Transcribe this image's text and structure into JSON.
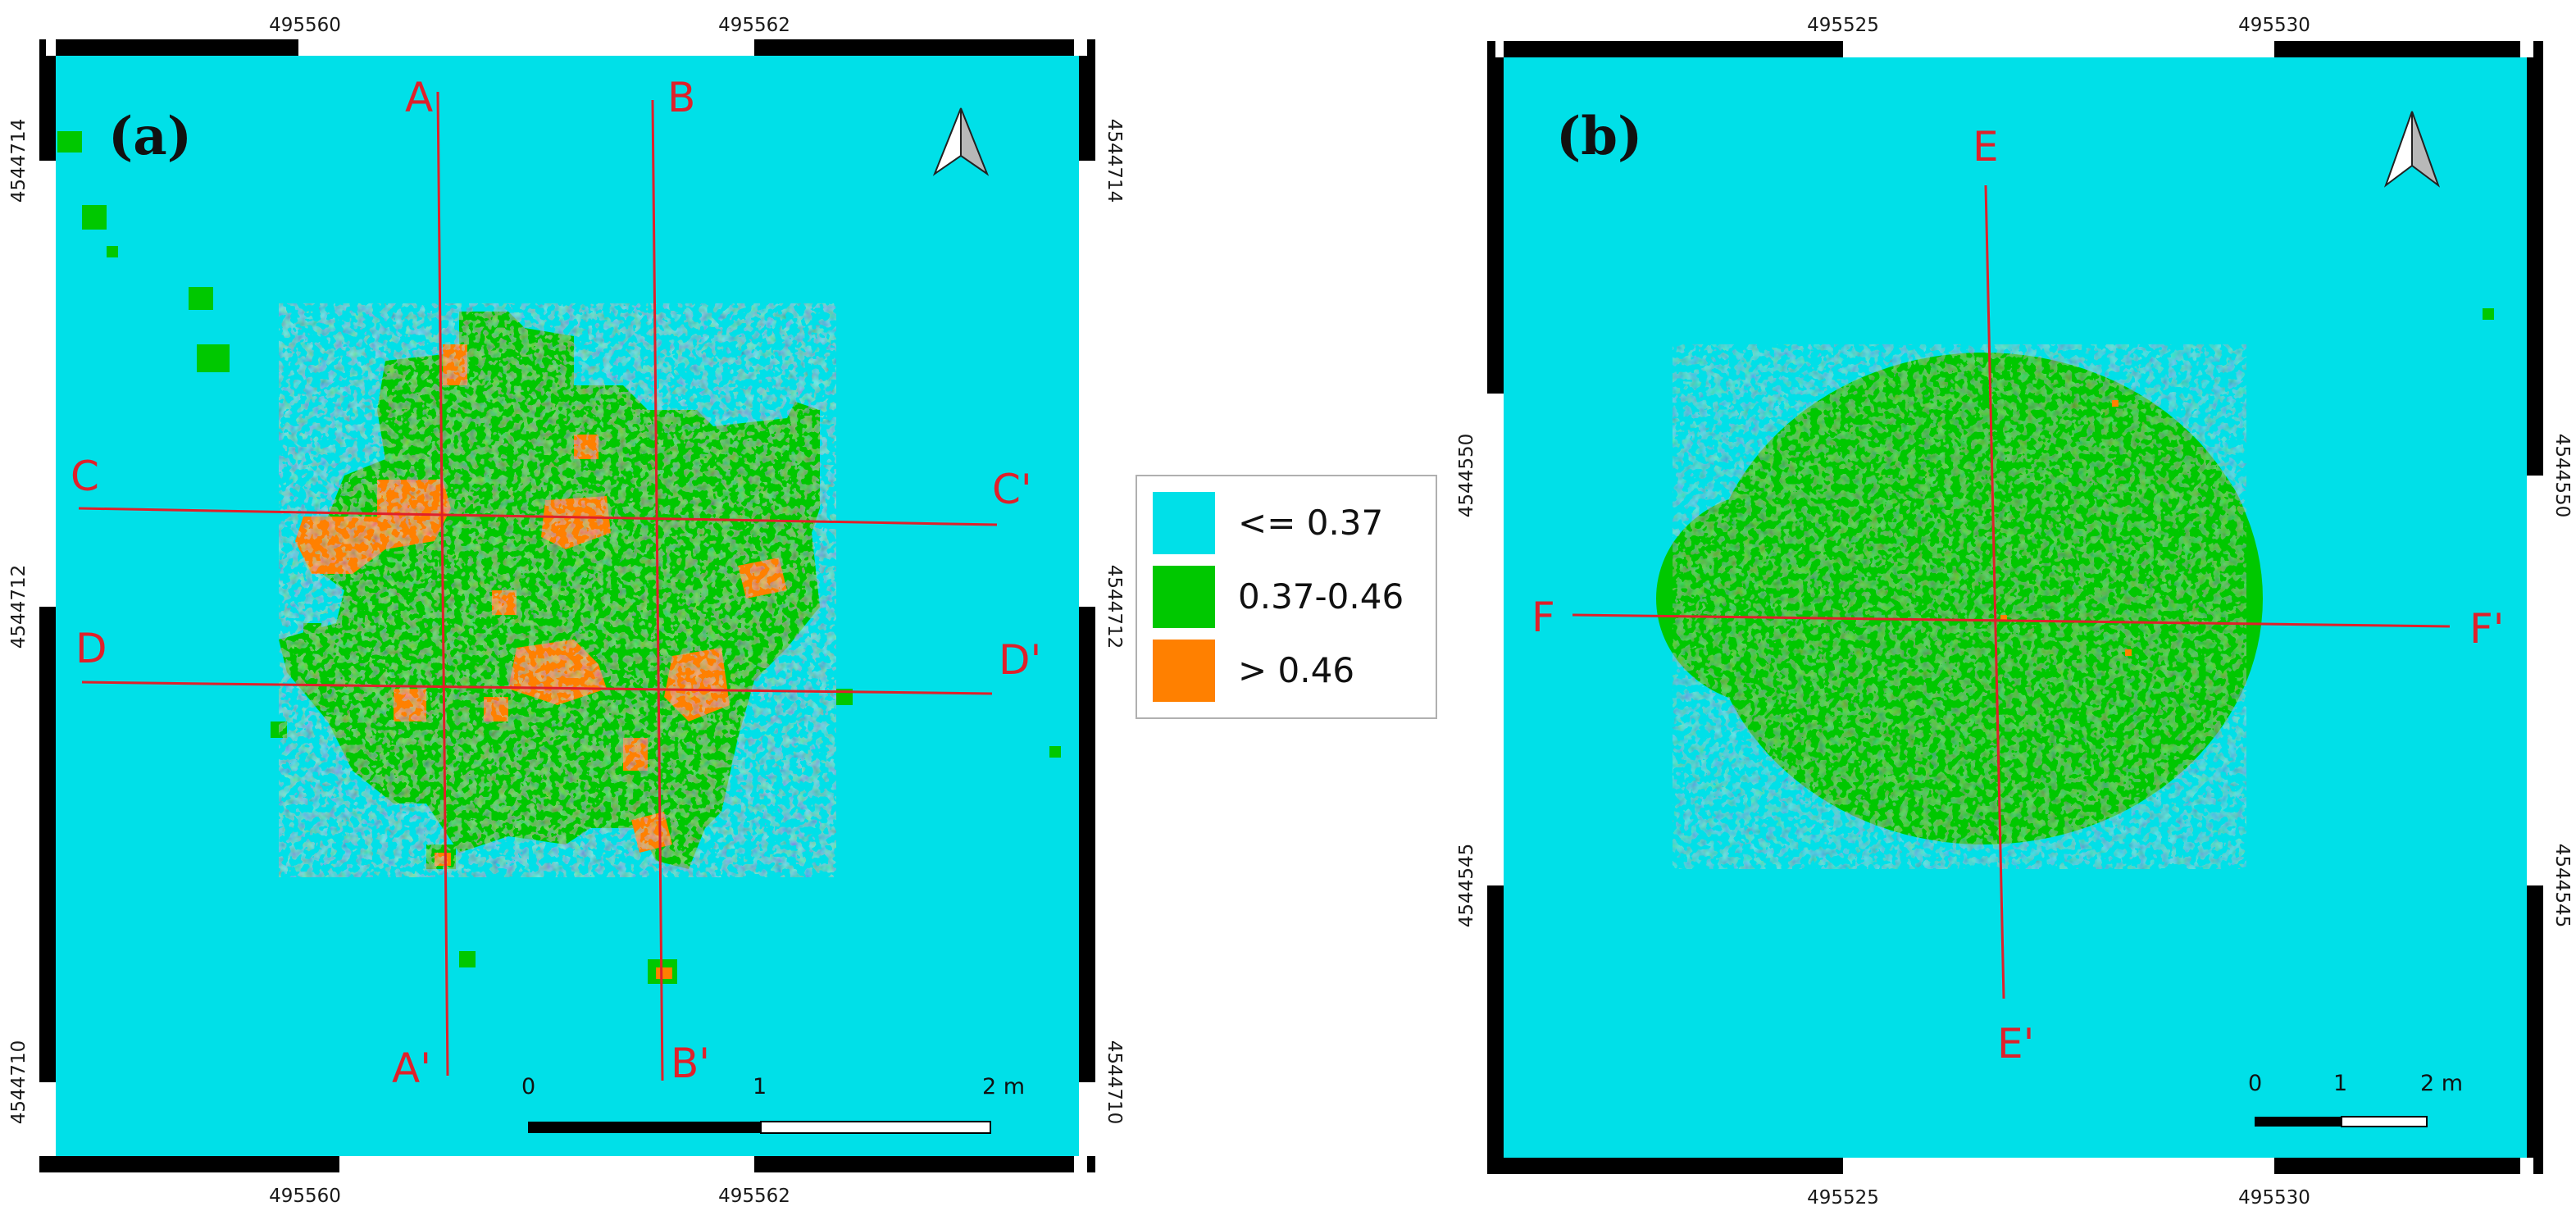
{
  "colors": {
    "low": "#00e0e8",
    "mid": "#00c800",
    "high": "#ff8000",
    "section_line": "#e0202a",
    "frame_dark": "#000000",
    "frame_light": "#ffffff"
  },
  "legend": {
    "items": [
      {
        "label": "<= 0.37",
        "color": "#00e0e8"
      },
      {
        "label": "0.37-0.46",
        "color": "#00c800"
      },
      {
        "label": "> 0.46",
        "color": "#ff8000"
      }
    ]
  },
  "panel_a": {
    "tag": "(a)",
    "x_ticks": [
      "495560",
      "495562"
    ],
    "y_ticks": [
      "4544714",
      "4544712",
      "4544710"
    ],
    "sections": {
      "A": "A",
      "A_end": "A'",
      "B": "B",
      "B_end": "B'",
      "C": "C",
      "C_end": "C'",
      "D": "D",
      "D_end": "D'"
    },
    "scale": {
      "zero": "0",
      "mid": "1",
      "end": "2 m"
    }
  },
  "panel_b": {
    "tag": "(b)",
    "x_ticks": [
      "495525",
      "495530"
    ],
    "y_ticks": [
      "4544550",
      "4544545"
    ],
    "sections": {
      "E": "E",
      "E_end": "E'",
      "F": "F",
      "F_end": "F'"
    },
    "scale": {
      "zero": "0",
      "mid": "1",
      "end": "2 m"
    }
  }
}
